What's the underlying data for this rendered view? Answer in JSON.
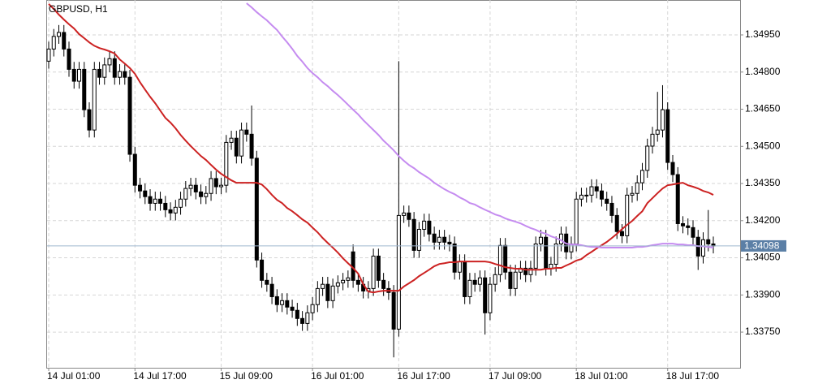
{
  "chart_data": {
    "type": "candlestick",
    "title": "GBPUSD, H1",
    "categories": [
      "14 Jul 01:00",
      null,
      null,
      null,
      null,
      null,
      null,
      null,
      null,
      null,
      null,
      null,
      null,
      null,
      null,
      null,
      null,
      "14 Jul 17:00",
      null,
      null,
      null,
      null,
      null,
      null,
      null,
      null,
      null,
      null,
      null,
      null,
      null,
      null,
      null,
      null,
      "15 Jul 09:00",
      null,
      null,
      null,
      null,
      null,
      null,
      null,
      null,
      null,
      null,
      null,
      null,
      null,
      null,
      null,
      null,
      null,
      "16 Jul 01:00",
      null,
      null,
      null,
      null,
      null,
      null,
      null,
      null,
      null,
      null,
      null,
      null,
      null,
      null,
      null,
      null,
      "16 Jul 17:00",
      null,
      null,
      null,
      null,
      null,
      null,
      null,
      null,
      null,
      null,
      null,
      null,
      null,
      null,
      null,
      null,
      null,
      "17 Jul 09:00",
      null,
      null,
      null,
      null,
      null,
      null,
      null,
      null,
      null,
      null,
      null,
      null,
      null,
      null,
      null,
      null,
      "18 Jul 01:00",
      null,
      null,
      null,
      null,
      null,
      null,
      null,
      null,
      null,
      null,
      null,
      null,
      null,
      null,
      null,
      null,
      null,
      "18 Jul 17:00",
      null,
      null,
      null,
      null,
      null,
      null,
      null,
      null,
      null
    ],
    "open": [
      1.34844,
      1.34893,
      1.34944,
      1.3496,
      1.34893,
      1.34811,
      1.34763,
      1.34811,
      1.34648,
      1.34566,
      1.34811,
      1.34779,
      1.34829,
      1.34854,
      1.34779,
      1.34802,
      1.34779,
      1.34468,
      1.34343,
      1.3432,
      1.34297,
      1.3427,
      1.34287,
      1.3427,
      1.34244,
      1.34231,
      1.34254,
      1.34287,
      1.3433,
      1.34343,
      1.34316,
      1.34297,
      1.3431,
      1.3437,
      1.34337,
      1.34343,
      1.34516,
      1.34533,
      1.34461,
      1.34566,
      1.34549,
      1.34452,
      1.34041,
      1.33959,
      1.33943,
      1.33893,
      1.33861,
      1.33877,
      1.33851,
      1.33838,
      1.33805,
      1.33785,
      1.33828,
      1.33861,
      1.33926,
      1.33943,
      1.33877,
      1.33936,
      1.33949,
      1.33959,
      1.34074,
      1.33959,
      1.33943,
      1.33916,
      1.33926,
      1.34057,
      1.33959,
      1.33926,
      1.3391,
      1.33762,
      1.34221,
      1.34231,
      1.34205,
      1.3408,
      1.34165,
      1.34198,
      1.34146,
      1.34113,
      1.34133,
      1.34113,
      1.34106,
      1.33992,
      1.34034,
      1.33893,
      1.33959,
      1.33943,
      1.33969,
      1.33828,
      1.33943,
      1.33982,
      1.341,
      1.33992,
      1.33926,
      1.33992,
      1.34008,
      1.33982,
      1.34008,
      1.34106,
      1.34133,
      1.34008,
      1.34024,
      1.34106,
      1.34146,
      1.34074,
      1.34106,
      1.34287,
      1.34303,
      1.34303,
      1.34337,
      1.3432,
      1.34287,
      1.3427,
      1.34221,
      1.34156,
      1.34139,
      1.34303,
      1.3431,
      1.34353,
      1.34403,
      1.34501,
      1.34549,
      1.34566,
      1.34648,
      1.34435,
      1.34386,
      1.34188,
      1.34179,
      1.34172,
      1.34133,
      1.34057,
      1.34123,
      1.34106
    ],
    "high": [
      1.34923,
      1.34974,
      1.3499,
      1.3499,
      1.34923,
      1.34841,
      1.34841,
      1.34841,
      1.34678,
      1.34841,
      1.34841,
      1.34859,
      1.34884,
      1.34884,
      1.34832,
      1.34832,
      1.34809,
      1.34498,
      1.34373,
      1.3435,
      1.34327,
      1.34317,
      1.34317,
      1.343,
      1.34274,
      1.34284,
      1.34317,
      1.3436,
      1.34373,
      1.34373,
      1.34346,
      1.3434,
      1.344,
      1.344,
      1.34373,
      1.34546,
      1.34563,
      1.34563,
      1.34596,
      1.34596,
      1.34665,
      1.34482,
      1.34071,
      1.33989,
      1.33973,
      1.33923,
      1.33907,
      1.33907,
      1.33881,
      1.33868,
      1.33835,
      1.33858,
      1.33891,
      1.33956,
      1.33973,
      1.33973,
      1.33966,
      1.33979,
      1.33989,
      1.33999,
      1.34104,
      1.33989,
      1.33973,
      1.33956,
      1.34087,
      1.34087,
      1.33989,
      1.33956,
      1.3394,
      1.34844,
      1.34261,
      1.34261,
      1.34235,
      1.34195,
      1.34228,
      1.34228,
      1.34176,
      1.34163,
      1.34163,
      1.34143,
      1.34136,
      1.34064,
      1.34064,
      1.33989,
      1.33989,
      1.33999,
      1.33999,
      1.33973,
      1.34012,
      1.3413,
      1.3413,
      1.34022,
      1.34022,
      1.34038,
      1.34038,
      1.34038,
      1.34136,
      1.34163,
      1.34163,
      1.34054,
      1.34136,
      1.34176,
      1.34176,
      1.34136,
      1.34317,
      1.34333,
      1.34333,
      1.34367,
      1.34367,
      1.3435,
      1.34317,
      1.343,
      1.34251,
      1.34186,
      1.34333,
      1.3434,
      1.34383,
      1.34433,
      1.34531,
      1.34579,
      1.3472,
      1.34747,
      1.34678,
      1.34465,
      1.34416,
      1.34218,
      1.34209,
      1.34202,
      1.34163,
      1.34153,
      1.34243,
      1.34136
    ],
    "low": [
      1.34814,
      1.34863,
      1.34914,
      1.34863,
      1.34781,
      1.34733,
      1.34733,
      1.34618,
      1.34536,
      1.34536,
      1.34749,
      1.34749,
      1.34799,
      1.34749,
      1.34749,
      1.34749,
      1.34438,
      1.34313,
      1.3429,
      1.34267,
      1.3424,
      1.3424,
      1.3424,
      1.34214,
      1.34201,
      1.34201,
      1.34224,
      1.34257,
      1.343,
      1.34286,
      1.34267,
      1.34267,
      1.3428,
      1.34307,
      1.34307,
      1.34313,
      1.34486,
      1.34431,
      1.34431,
      1.34519,
      1.34422,
      1.34011,
      1.33929,
      1.33913,
      1.33863,
      1.33831,
      1.33831,
      1.33821,
      1.33808,
      1.33775,
      1.33755,
      1.33755,
      1.33798,
      1.33831,
      1.33896,
      1.33847,
      1.33847,
      1.33906,
      1.33919,
      1.33929,
      1.33929,
      1.33913,
      1.33886,
      1.33886,
      1.33896,
      1.33929,
      1.33896,
      1.3388,
      1.33648,
      1.33732,
      1.34191,
      1.34175,
      1.3405,
      1.3405,
      1.34135,
      1.34116,
      1.34083,
      1.34083,
      1.34083,
      1.34076,
      1.33962,
      1.33962,
      1.33863,
      1.33863,
      1.33913,
      1.33913,
      1.3374,
      1.33798,
      1.33913,
      1.33952,
      1.33962,
      1.33896,
      1.33896,
      1.33962,
      1.33952,
      1.33952,
      1.33978,
      1.34076,
      1.33978,
      1.33978,
      1.33994,
      1.34076,
      1.34044,
      1.34044,
      1.34076,
      1.34257,
      1.34273,
      1.34273,
      1.3429,
      1.34257,
      1.3424,
      1.34191,
      1.34126,
      1.34109,
      1.34109,
      1.34273,
      1.3428,
      1.34323,
      1.34373,
      1.34471,
      1.34519,
      1.34536,
      1.34405,
      1.34356,
      1.34158,
      1.34149,
      1.34142,
      1.34103,
      1.34001,
      1.34027,
      1.34076,
      1.34068
    ],
    "close": [
      1.34893,
      1.34944,
      1.3496,
      1.34893,
      1.34811,
      1.34763,
      1.34811,
      1.34648,
      1.34566,
      1.34811,
      1.34779,
      1.34829,
      1.34854,
      1.34779,
      1.34802,
      1.34779,
      1.34468,
      1.34343,
      1.3432,
      1.34297,
      1.3427,
      1.34287,
      1.3427,
      1.34244,
      1.34231,
      1.34254,
      1.34287,
      1.3433,
      1.34343,
      1.34316,
      1.34297,
      1.3431,
      1.3437,
      1.34337,
      1.34343,
      1.34516,
      1.34533,
      1.34461,
      1.34566,
      1.34549,
      1.34452,
      1.34041,
      1.33959,
      1.33943,
      1.33893,
      1.33861,
      1.33877,
      1.33851,
      1.33838,
      1.33805,
      1.33785,
      1.33828,
      1.33861,
      1.33926,
      1.33943,
      1.33877,
      1.33936,
      1.33949,
      1.33959,
      1.33969,
      1.33959,
      1.33943,
      1.33916,
      1.33926,
      1.34057,
      1.33959,
      1.33926,
      1.3391,
      1.33762,
      1.34221,
      1.34231,
      1.34205,
      1.3408,
      1.34165,
      1.34198,
      1.34146,
      1.34113,
      1.34133,
      1.34113,
      1.34106,
      1.33992,
      1.34034,
      1.33893,
      1.33959,
      1.33943,
      1.33969,
      1.33828,
      1.33943,
      1.33982,
      1.341,
      1.33992,
      1.33926,
      1.33992,
      1.34008,
      1.33982,
      1.34008,
      1.34106,
      1.34133,
      1.34008,
      1.34024,
      1.34106,
      1.34146,
      1.34074,
      1.34106,
      1.34287,
      1.34303,
      1.34303,
      1.34337,
      1.3432,
      1.34287,
      1.3427,
      1.34221,
      1.34156,
      1.34139,
      1.34303,
      1.3431,
      1.34353,
      1.34403,
      1.34501,
      1.34549,
      1.34566,
      1.34648,
      1.34435,
      1.34386,
      1.34188,
      1.34179,
      1.34172,
      1.34133,
      1.34057,
      1.34123,
      1.34106,
      1.34098
    ],
    "up_color": "#ffffff",
    "down_color": "#000000",
    "series": [
      {
        "color": "#cc2222",
        "values": [
          1.35075,
          1.35055,
          1.35032,
          1.35012,
          1.34993,
          1.34976,
          1.34953,
          1.34937,
          1.3492,
          1.34906,
          1.34897,
          1.34891,
          1.34884,
          1.34875,
          1.34851,
          1.34834,
          1.34816,
          1.34793,
          1.34759,
          1.34729,
          1.347,
          1.34674,
          1.34644,
          1.34615,
          1.34596,
          1.34573,
          1.34546,
          1.34523,
          1.34501,
          1.34481,
          1.34461,
          1.34445,
          1.34425,
          1.34406,
          1.34389,
          1.34376,
          1.34363,
          1.34353,
          1.34353,
          1.34353,
          1.34353,
          1.34353,
          1.34346,
          1.34327,
          1.34304,
          1.34284,
          1.34271,
          1.34251,
          1.34238,
          1.34222,
          1.34205,
          1.34192,
          1.34172,
          1.34153,
          1.3413,
          1.3411,
          1.34091,
          1.34071,
          1.34048,
          1.34028,
          1.34009,
          1.33986,
          1.33943,
          1.33914,
          1.3391,
          1.33914,
          1.33917,
          1.33917,
          1.33917,
          1.33917,
          1.33934,
          1.33947,
          1.3396,
          1.33976,
          1.33989,
          1.34002,
          1.34016,
          1.34025,
          1.34028,
          1.34032,
          1.34032,
          1.34035,
          1.34035,
          1.34035,
          1.34035,
          1.34035,
          1.34035,
          1.34032,
          1.34025,
          1.34019,
          1.34012,
          1.34009,
          1.34006,
          1.34006,
          1.34002,
          1.34002,
          1.34002,
          1.34002,
          1.34006,
          1.34006,
          1.34009,
          1.34009,
          1.34019,
          1.34028,
          1.34039,
          1.34045,
          1.34061,
          1.34074,
          1.34088,
          1.34101,
          1.34114,
          1.3413,
          1.34147,
          1.34166,
          1.34183,
          1.34199,
          1.34219,
          1.34238,
          1.34271,
          1.34291,
          1.34311,
          1.3433,
          1.34343,
          1.34346,
          1.3435,
          1.34353,
          1.34343,
          1.34337,
          1.3433,
          1.3432,
          1.34314,
          1.34304
        ]
      },
      {
        "color": "#c58cf0",
        "values": [
          null,
          null,
          null,
          null,
          null,
          null,
          null,
          null,
          null,
          null,
          null,
          null,
          null,
          null,
          null,
          null,
          null,
          null,
          null,
          null,
          null,
          null,
          null,
          null,
          null,
          null,
          null,
          null,
          null,
          null,
          null,
          null,
          null,
          null,
          null,
          null,
          null,
          null,
          null,
          1.35078,
          1.35061,
          1.35042,
          1.35025,
          1.35009,
          1.34989,
          1.3497,
          1.34944,
          1.3492,
          1.34894,
          1.34865,
          1.34842,
          1.34816,
          1.34796,
          1.34779,
          1.34759,
          1.34743,
          1.34724,
          1.34707,
          1.34688,
          1.34668,
          1.34648,
          1.34629,
          1.34606,
          1.34586,
          1.34566,
          1.34546,
          1.34523,
          1.34504,
          1.34484,
          1.34461,
          1.34442,
          1.34425,
          1.34412,
          1.34396,
          1.34383,
          1.3437,
          1.34353,
          1.3434,
          1.34327,
          1.34316,
          1.34307,
          1.34294,
          1.34284,
          1.34271,
          1.34265,
          1.34254,
          1.34244,
          1.34235,
          1.34225,
          1.34219,
          1.34209,
          1.34202,
          1.34196,
          1.34189,
          1.34179,
          1.3417,
          1.34163,
          1.34153,
          1.34147,
          1.34137,
          1.3413,
          1.34121,
          1.34107,
          1.34104,
          1.34104,
          1.34101,
          1.34097,
          1.34094,
          1.34094,
          1.34091,
          1.34091,
          1.34091,
          1.34091,
          1.34091,
          1.34091,
          1.34091,
          1.34094,
          1.34094,
          1.34097,
          1.34101,
          1.34104,
          1.34107,
          1.34107,
          1.34107,
          1.34104,
          1.34104,
          1.34101,
          1.34101,
          1.34097,
          1.34097,
          1.34094,
          1.34091
        ]
      }
    ],
    "ylim": [
      1.33606,
      1.35091
    ],
    "yticks": [
      {
        "value": 1.3495,
        "label": "1.34950"
      },
      {
        "value": 1.348,
        "label": "1.34800"
      },
      {
        "value": 1.3465,
        "label": "1.34650"
      },
      {
        "value": 1.345,
        "label": "1.34500"
      },
      {
        "value": 1.3435,
        "label": "1.34350"
      },
      {
        "value": 1.342,
        "label": "1.34200"
      },
      {
        "value": 1.3405,
        "label": "1.34050"
      },
      {
        "value": 1.339,
        "label": "1.33900"
      },
      {
        "value": 1.3375,
        "label": "1.33750"
      }
    ],
    "grid": true,
    "last_price": 1.34098,
    "last_price_color": "#5b7fa6"
  }
}
